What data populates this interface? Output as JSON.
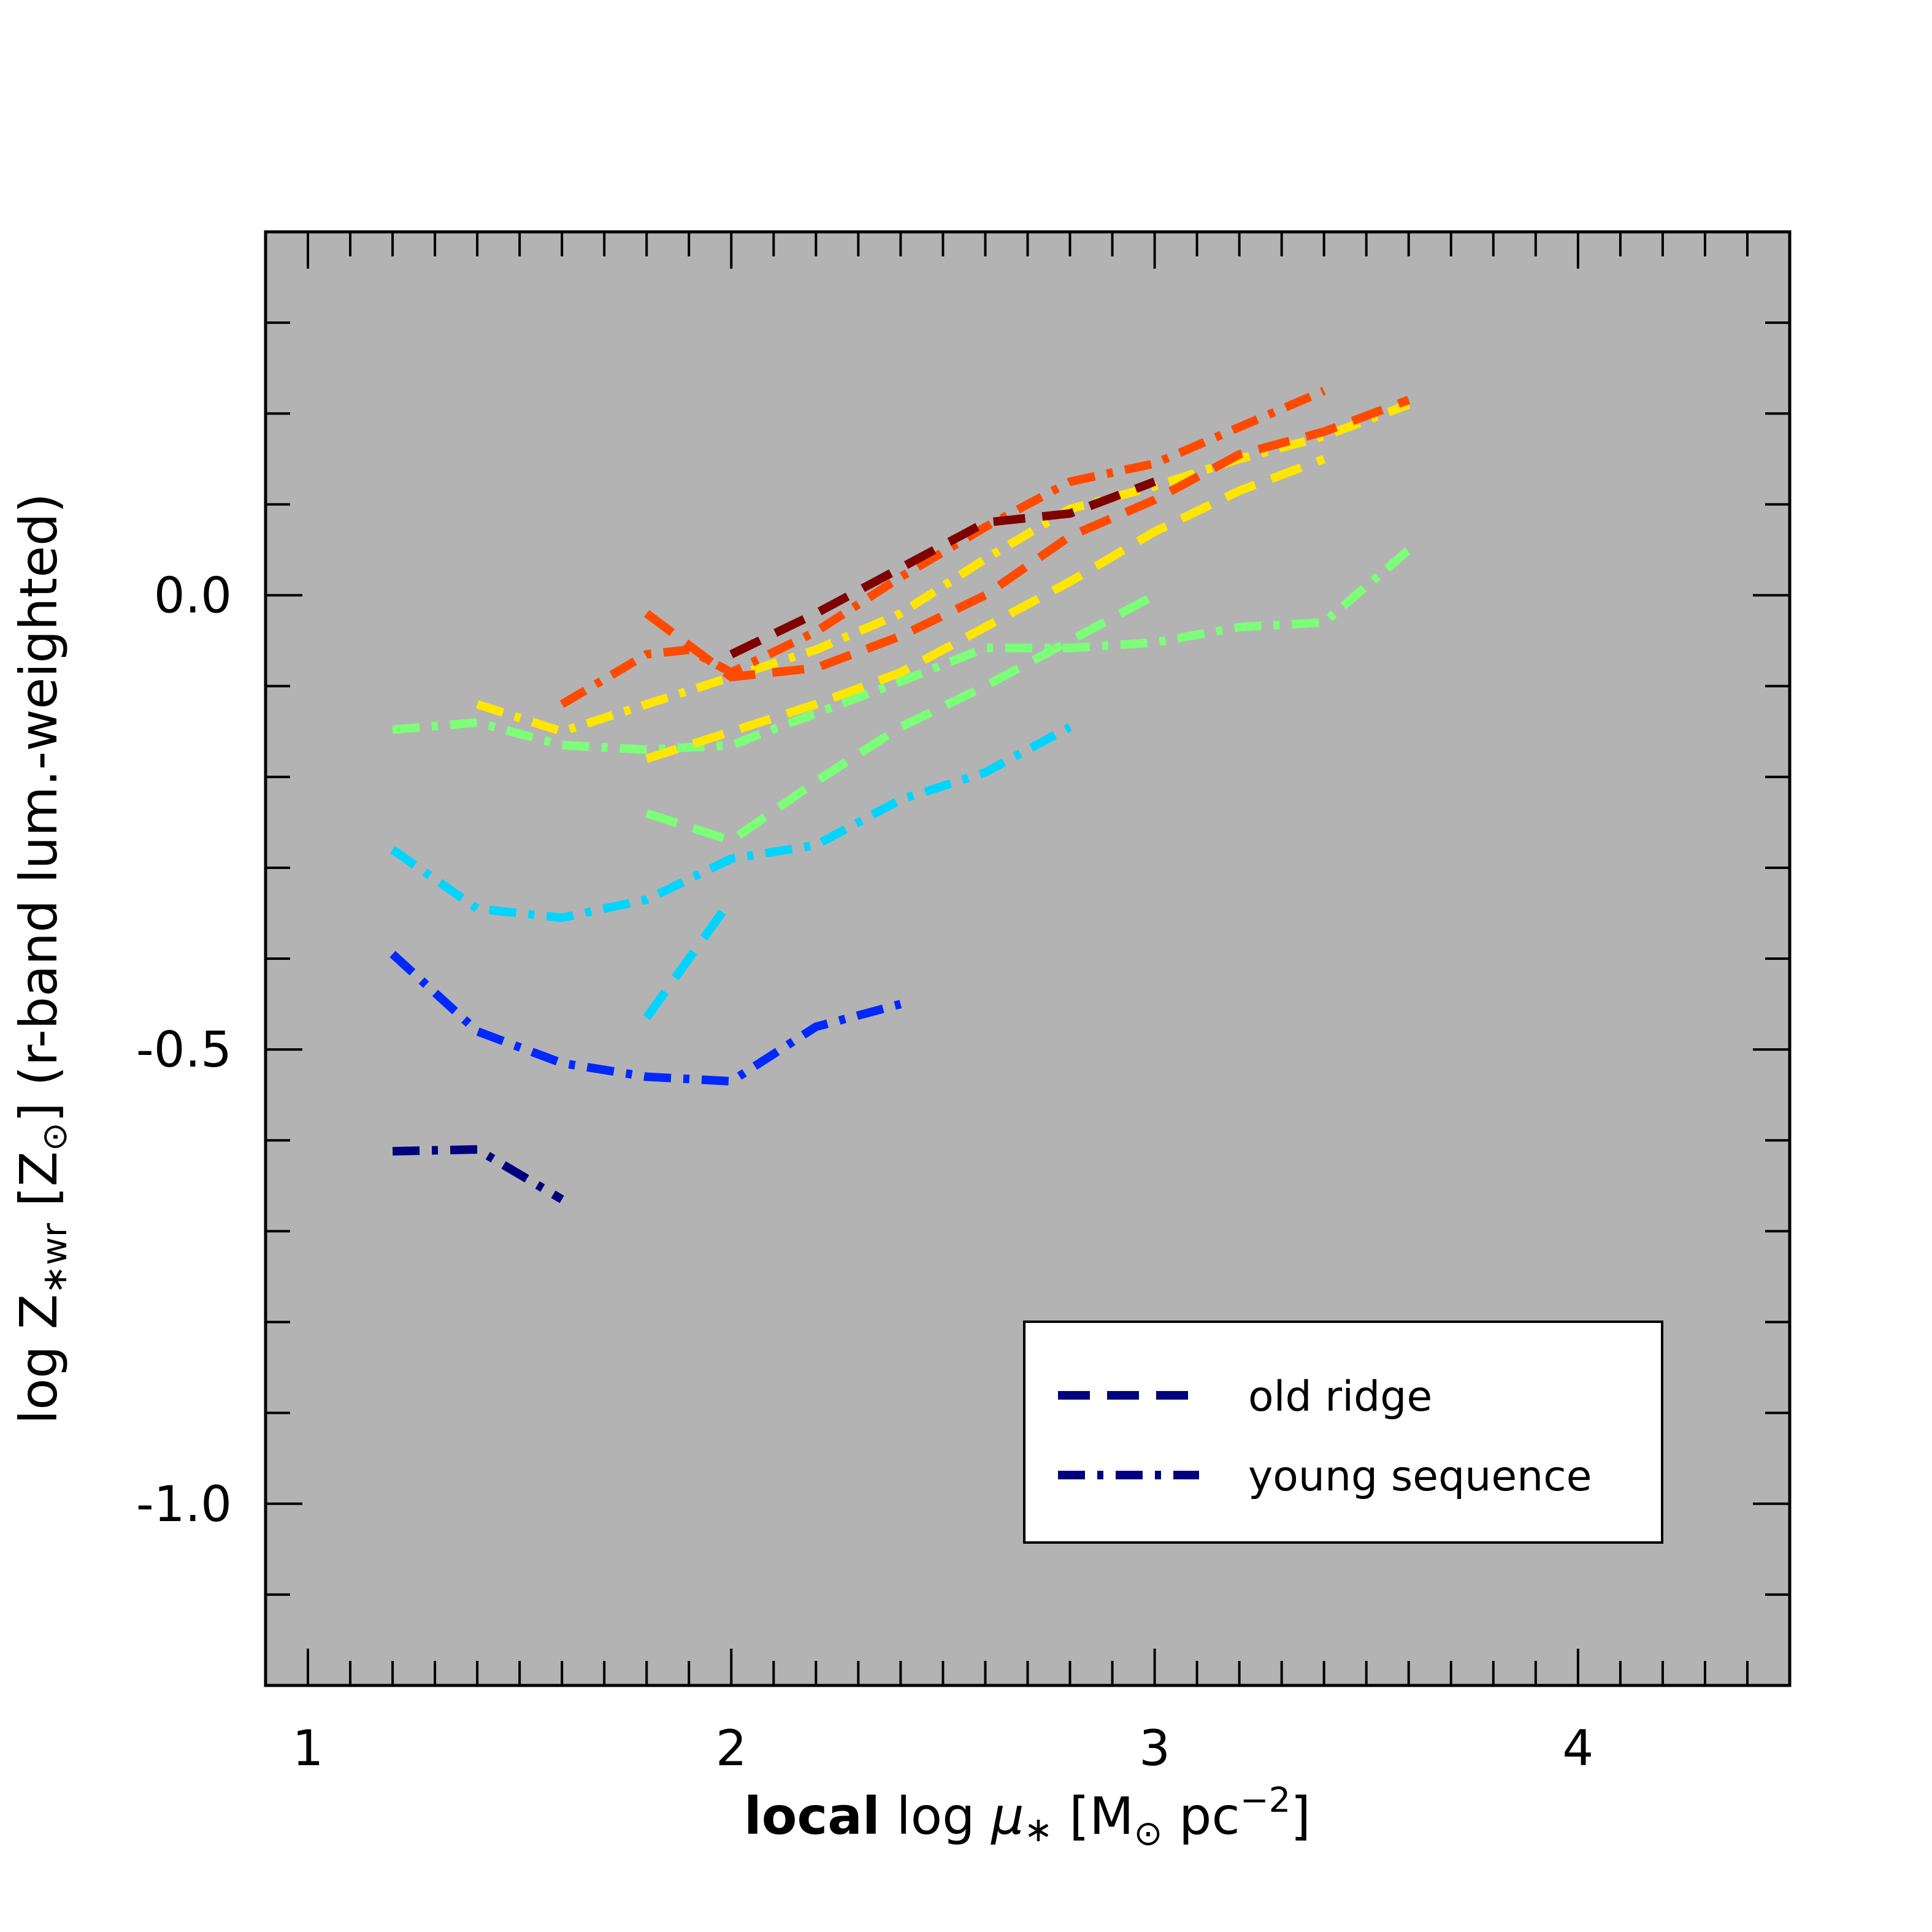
{
  "chart_data": {
    "type": "line",
    "xlim": [
      0.9,
      4.5
    ],
    "ylim": [
      -1.2,
      0.4
    ],
    "x_major_ticks": [
      1,
      2,
      3,
      4
    ],
    "x_tick_labels": [
      "1",
      "2",
      "3",
      "4"
    ],
    "y_major_ticks": [
      0.0,
      -0.5,
      -1.0
    ],
    "y_tick_labels": [
      "0.0",
      "-0.5",
      "-1.0"
    ],
    "xlabel": {
      "bold": "local",
      "normal": "log",
      "mu": "μ",
      "star": "∗",
      "unit_open": "[M",
      "sun": "⊙",
      "unit_mid": "pc",
      "exponent": "−2",
      "unit_close": "]"
    },
    "ylabel": {
      "prefix": "log Z",
      "subscript": "∗wr",
      "unit_open": "[Z",
      "sun": "⊙",
      "unit_close": "]",
      "suffix": "(r-band lum.-weighted)"
    },
    "background": "#b3b3b3",
    "legend": {
      "position": "lower-right",
      "entries": [
        {
          "label": "old ridge",
          "style": "dashed",
          "color": "#00007f"
        },
        {
          "label": "young sequence",
          "style": "dashdot",
          "color": "#00007f"
        }
      ]
    },
    "series": [
      {
        "name": "young-navy",
        "style": "dashdot",
        "color": "#00007f",
        "x": [
          1.2,
          1.4,
          1.6
        ],
        "y": [
          -0.612,
          -0.61,
          -0.665
        ]
      },
      {
        "name": "young-blue",
        "style": "dashdot",
        "color": "#0028ff",
        "x": [
          1.2,
          1.4,
          1.6,
          1.8,
          2.0,
          2.2,
          2.4
        ],
        "y": [
          -0.395,
          -0.48,
          -0.515,
          -0.53,
          -0.535,
          -0.475,
          -0.45
        ]
      },
      {
        "name": "young-cyan",
        "style": "dashdot",
        "color": "#00d4ff",
        "x": [
          1.2,
          1.4,
          1.6,
          1.8,
          2.0,
          2.2,
          2.4,
          2.6,
          2.8
        ],
        "y": [
          -0.28,
          -0.345,
          -0.355,
          -0.335,
          -0.29,
          -0.275,
          -0.225,
          -0.195,
          -0.145
        ]
      },
      {
        "name": "old-cyan",
        "style": "dashed",
        "color": "#00d4ff",
        "x": [
          1.8,
          2.0
        ],
        "y": [
          -0.465,
          -0.335
        ]
      },
      {
        "name": "young-green",
        "style": "dashdot",
        "color": "#7cff79",
        "x": [
          1.2,
          1.4,
          1.6,
          1.8,
          2.0,
          2.2,
          2.4,
          2.6,
          2.8,
          3.0,
          3.2,
          3.4,
          3.6
        ],
        "y": [
          -0.148,
          -0.14,
          -0.165,
          -0.17,
          -0.165,
          -0.13,
          -0.095,
          -0.058,
          -0.058,
          -0.052,
          -0.035,
          -0.03,
          0.05
        ]
      },
      {
        "name": "old-green",
        "style": "dashed",
        "color": "#7cff79",
        "x": [
          1.8,
          2.0,
          2.2,
          2.4,
          2.6,
          2.8,
          3.0
        ],
        "y": [
          -0.24,
          -0.27,
          -0.205,
          -0.145,
          -0.1,
          -0.05,
          0.0
        ]
      },
      {
        "name": "young-yellow",
        "style": "dashdot",
        "color": "#ffe600",
        "x": [
          1.4,
          1.6,
          1.8,
          2.0,
          2.2,
          2.4,
          2.6,
          2.8,
          3.0,
          3.2,
          3.4,
          3.6
        ],
        "y": [
          -0.12,
          -0.15,
          -0.12,
          -0.09,
          -0.06,
          -0.02,
          0.04,
          0.095,
          0.12,
          0.15,
          0.175,
          0.21
        ]
      },
      {
        "name": "old-yellow",
        "style": "dashed",
        "color": "#ffe600",
        "x": [
          1.8,
          2.0,
          2.2,
          2.4,
          2.6,
          2.8,
          3.0,
          3.2,
          3.4
        ],
        "y": [
          -0.18,
          -0.15,
          -0.12,
          -0.085,
          -0.035,
          0.015,
          0.07,
          0.115,
          0.15
        ]
      },
      {
        "name": "young-red",
        "style": "dashdot",
        "color": "#ff4a00",
        "x": [
          1.6,
          1.8,
          1.9,
          2.0,
          2.2,
          2.4,
          2.6,
          2.8,
          3.0,
          3.2,
          3.4
        ],
        "y": [
          -0.12,
          -0.065,
          -0.06,
          -0.085,
          -0.04,
          0.02,
          0.075,
          0.125,
          0.145,
          0.185,
          0.225
        ]
      },
      {
        "name": "old-red",
        "style": "dashed",
        "color": "#ff4a00",
        "x": [
          1.8,
          2.0,
          2.2,
          2.4,
          2.6,
          2.8,
          3.0,
          3.2,
          3.4,
          3.6
        ],
        "y": [
          -0.02,
          -0.09,
          -0.08,
          -0.045,
          0.0,
          0.065,
          0.105,
          0.155,
          0.18,
          0.215
        ]
      },
      {
        "name": "old-darkred",
        "style": "dashed",
        "color": "#7f0000",
        "x": [
          2.0,
          2.2,
          2.4,
          2.6,
          2.8,
          3.0
        ],
        "y": [
          -0.065,
          -0.02,
          0.03,
          0.08,
          0.09,
          0.125
        ]
      }
    ]
  }
}
